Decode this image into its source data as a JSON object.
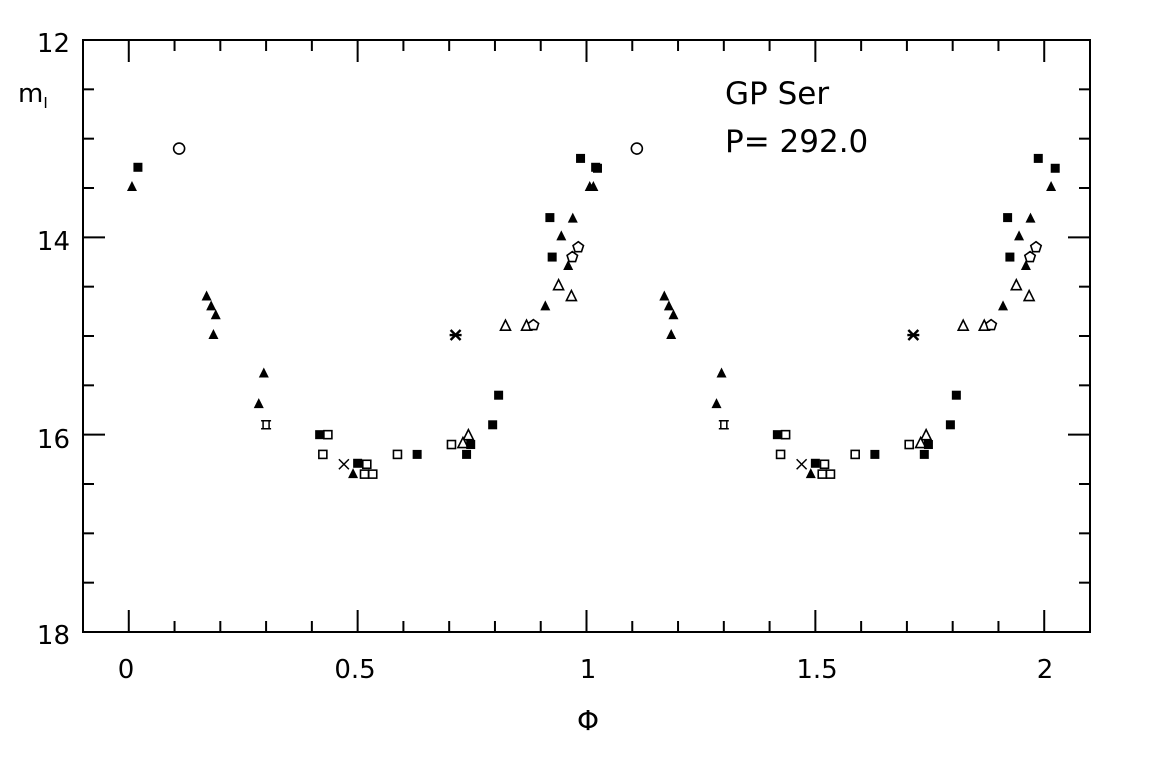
{
  "chart_data": {
    "type": "scatter",
    "title": "",
    "annotations": [
      "GP Ser",
      "P= 292.0"
    ],
    "xlabel": "Φ",
    "ylabel_main": "m",
    "ylabel_sub": "I",
    "xlim": [
      -0.1,
      2.1
    ],
    "ylim": [
      18,
      12
    ],
    "y_inverted": true,
    "x_ticks": [
      "0",
      "0.5",
      "1",
      "1.5",
      "2"
    ],
    "y_ticks": [
      "12",
      "14",
      "16",
      "18"
    ],
    "grid": false,
    "phase_repeated": true,
    "points": [
      {
        "x": 0.007,
        "y": 13.48,
        "marker": "filled-triangle"
      },
      {
        "x": 0.02,
        "y": 13.29,
        "marker": "filled-square"
      },
      {
        "x": 0.11,
        "y": 13.1,
        "marker": "open-circle"
      },
      {
        "x": 0.17,
        "y": 14.59,
        "marker": "filled-triangle"
      },
      {
        "x": 0.18,
        "y": 14.69,
        "marker": "filled-triangle"
      },
      {
        "x": 0.19,
        "y": 14.78,
        "marker": "filled-triangle"
      },
      {
        "x": 0.185,
        "y": 14.98,
        "marker": "filled-triangle"
      },
      {
        "x": 0.295,
        "y": 15.37,
        "marker": "filled-triangle"
      },
      {
        "x": 0.284,
        "y": 15.68,
        "marker": "filled-triangle"
      },
      {
        "x": 0.3,
        "y": 15.9,
        "marker": "star-square"
      },
      {
        "x": 0.417,
        "y": 16.0,
        "marker": "filled-square"
      },
      {
        "x": 0.435,
        "y": 16.0,
        "marker": "open-square"
      },
      {
        "x": 0.424,
        "y": 16.2,
        "marker": "open-square"
      },
      {
        "x": 0.47,
        "y": 16.3,
        "marker": "cross"
      },
      {
        "x": 0.5,
        "y": 16.29,
        "marker": "filled-square"
      },
      {
        "x": 0.52,
        "y": 16.3,
        "marker": "open-square"
      },
      {
        "x": 0.49,
        "y": 16.39,
        "marker": "filled-triangle"
      },
      {
        "x": 0.515,
        "y": 16.4,
        "marker": "open-square"
      },
      {
        "x": 0.533,
        "y": 16.4,
        "marker": "open-square"
      },
      {
        "x": 0.587,
        "y": 16.2,
        "marker": "open-square"
      },
      {
        "x": 0.63,
        "y": 16.2,
        "marker": "filled-square"
      },
      {
        "x": 0.705,
        "y": 16.1,
        "marker": "open-square"
      },
      {
        "x": 0.742,
        "y": 16.0,
        "marker": "open-triangle"
      },
      {
        "x": 0.73,
        "y": 16.08,
        "marker": "open-triangle"
      },
      {
        "x": 0.747,
        "y": 16.1,
        "marker": "filled-square"
      },
      {
        "x": 0.738,
        "y": 16.2,
        "marker": "filled-square"
      },
      {
        "x": 0.714,
        "y": 14.99,
        "marker": "asterisk"
      },
      {
        "x": 0.795,
        "y": 15.9,
        "marker": "filled-square"
      },
      {
        "x": 0.808,
        "y": 15.6,
        "marker": "filled-square"
      },
      {
        "x": 0.823,
        "y": 14.89,
        "marker": "open-triangle"
      },
      {
        "x": 0.869,
        "y": 14.89,
        "marker": "open-triangle"
      },
      {
        "x": 0.884,
        "y": 14.89,
        "marker": "open-pentagon"
      },
      {
        "x": 0.91,
        "y": 14.69,
        "marker": "filled-triangle"
      },
      {
        "x": 0.939,
        "y": 14.48,
        "marker": "open-triangle"
      },
      {
        "x": 0.967,
        "y": 14.59,
        "marker": "open-triangle"
      },
      {
        "x": 0.92,
        "y": 13.8,
        "marker": "filled-square"
      },
      {
        "x": 0.925,
        "y": 14.2,
        "marker": "filled-square"
      },
      {
        "x": 0.97,
        "y": 13.8,
        "marker": "filled-triangle"
      },
      {
        "x": 0.945,
        "y": 13.98,
        "marker": "filled-triangle"
      },
      {
        "x": 0.96,
        "y": 14.28,
        "marker": "filled-triangle"
      },
      {
        "x": 0.982,
        "y": 14.1,
        "marker": "open-pentagon"
      },
      {
        "x": 0.969,
        "y": 14.2,
        "marker": "open-pentagon"
      },
      {
        "x": 0.987,
        "y": 13.2,
        "marker": "filled-square"
      },
      {
        "x": 1.024,
        "y": 13.3,
        "marker": "filled-square"
      },
      {
        "x": 1.015,
        "y": 13.48,
        "marker": "filled-triangle"
      }
    ]
  }
}
